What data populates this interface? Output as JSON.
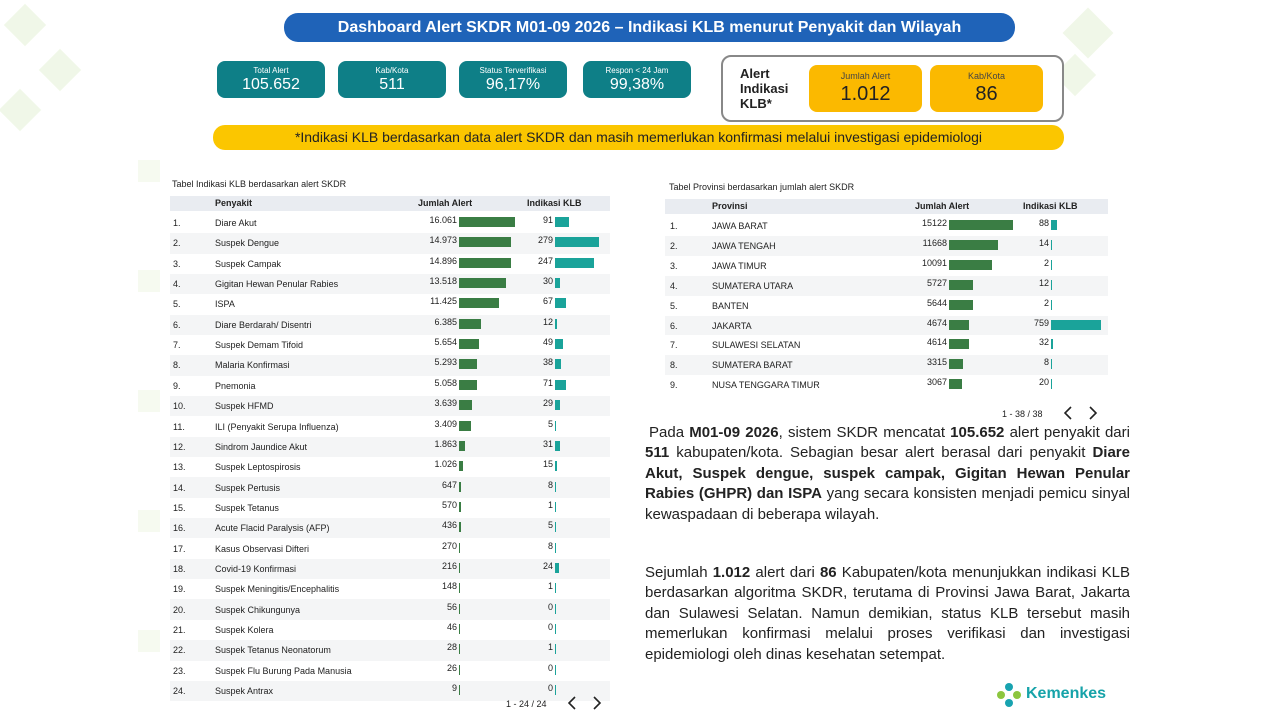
{
  "header": {
    "title": "Dashboard Alert SKDR M01-09 2026 – Indikasi KLB menurut Penyakit dan Wilayah"
  },
  "kpis": [
    {
      "label": "Total Alert",
      "value": "105.652"
    },
    {
      "label": "Kab/Kota",
      "value": "511"
    },
    {
      "label": "Status Terverifikasi",
      "value": "96,17%"
    },
    {
      "label": "Respon < 24 Jam",
      "value": "99,38%"
    }
  ],
  "klb_box": {
    "title": "Alert Indikasi KLB*",
    "items": [
      {
        "label": "Jumlah Alert",
        "value": "1.012"
      },
      {
        "label": "Kab/Kota",
        "value": "86"
      }
    ]
  },
  "note": "*Indikasi KLB berdasarkan data alert SKDR dan masih memerlukan konfirmasi melalui investigasi epidemiologi",
  "disease_table": {
    "caption": "Tabel Indikasi KLB berdasarkan alert SKDR",
    "columns": [
      "Penyakit",
      "Jumlah Alert",
      "Indikasi KLB"
    ],
    "rows": [
      [
        "1.",
        "Diare Akut",
        {
          "value": 16061,
          "label": "16.061"
        },
        91
      ],
      [
        "2.",
        "Suspek Dengue",
        {
          "value": 14973,
          "label": "14.973"
        },
        279
      ],
      [
        "3.",
        "Suspek Campak",
        {
          "value": 14896,
          "label": "14.896"
        },
        247
      ],
      [
        "4.",
        "Gigitan Hewan Penular Rabies",
        {
          "value": 13518,
          "label": "13.518"
        },
        30
      ],
      [
        "5.",
        "ISPA",
        {
          "value": 11425,
          "label": "11.425"
        },
        67
      ],
      [
        "6.",
        "Diare Berdarah/ Disentri",
        {
          "value": 6385,
          "label": "6.385"
        },
        12
      ],
      [
        "7.",
        "Suspek Demam Tifoid",
        {
          "value": 5654,
          "label": "5.654"
        },
        49
      ],
      [
        "8.",
        "Malaria Konfirmasi",
        {
          "value": 5293,
          "label": "5.293"
        },
        38
      ],
      [
        "9.",
        "Pnemonia",
        {
          "value": 5058,
          "label": "5.058"
        },
        71
      ],
      [
        "10.",
        "Suspek HFMD",
        {
          "value": 3639,
          "label": "3.639"
        },
        29
      ],
      [
        "11.",
        "ILI (Penyakit Serupa Influenza)",
        {
          "value": 3409,
          "label": "3.409"
        },
        5
      ],
      [
        "12.",
        "Sindrom Jaundice Akut",
        {
          "value": 1863,
          "label": "1.863"
        },
        31
      ],
      [
        "13.",
        "Suspek Leptospirosis",
        {
          "value": 1026,
          "label": "1.026"
        },
        15
      ],
      [
        "14.",
        "Suspek Pertusis",
        647,
        8
      ],
      [
        "15.",
        "Suspek Tetanus",
        570,
        1
      ],
      [
        "16.",
        "Acute Flacid Paralysis (AFP)",
        436,
        5
      ],
      [
        "17.",
        "Kasus Observasi Difteri",
        270,
        8
      ],
      [
        "18.",
        "Covid-19 Konfirmasi",
        216,
        24
      ],
      [
        "19.",
        "Suspek Meningitis/Encephalitis",
        148,
        1
      ],
      [
        "20.",
        "Suspek Chikungunya",
        56,
        0
      ],
      [
        "21.",
        "Suspek Kolera",
        46,
        0
      ],
      [
        "22.",
        "Suspek Tetanus Neonatorum",
        28,
        1
      ],
      [
        "23.",
        "Suspek Flu Burung Pada Manusia",
        26,
        0
      ],
      [
        "24.",
        "Suspek Antrax",
        9,
        0
      ]
    ],
    "pagination": "1 - 24 / 24"
  },
  "province_table": {
    "caption": "Tabel Provinsi berdasarkan jumlah alert SKDR",
    "columns": [
      "Provinsi",
      "Jumlah Alert",
      "Indikasi KLB"
    ],
    "rows": [
      [
        "1.",
        "JAWA BARAT",
        15122,
        88
      ],
      [
        "2.",
        "JAWA TENGAH",
        11668,
        14
      ],
      [
        "3.",
        "JAWA TIMUR",
        10091,
        2
      ],
      [
        "4.",
        "SUMATERA UTARA",
        5727,
        12
      ],
      [
        "5.",
        "BANTEN",
        5644,
        2
      ],
      [
        "6.",
        "JAKARTA",
        4674,
        759
      ],
      [
        "7.",
        "SULAWESI SELATAN",
        4614,
        32
      ],
      [
        "8.",
        "SUMATERA BARAT",
        3315,
        8
      ],
      [
        "9.",
        "NUSA TENGGARA TIMUR",
        3067,
        20
      ]
    ],
    "pagination": "1 - 38 / 38"
  },
  "paragraphs": [
    [
      "Pada ",
      "M01-09 2026",
      ", sistem SKDR mencatat ",
      "105.652",
      " alert penyakit dari ",
      "511",
      " kabupaten/kota. Sebagian besar alert berasal dari penyakit ",
      "Diare Akut, Suspek dengue, suspek campak, Gigitan Hewan Penular Rabies (GHPR) dan ISPA",
      " yang secara konsisten menjadi pemicu sinyal kewaspadaan di beberapa wilayah."
    ],
    [
      "Sejumlah ",
      "1.012",
      " alert dari ",
      "86",
      " Kabupaten/kota menunjukkan indikasi KLB berdasarkan algoritma SKDR, terutama di Provinsi Jawa Barat, Jakarta dan Sulawesi Selatan. Namun demikian, status KLB tersebut masih memerlukan konfirmasi melalui proses verifikasi dan investigasi epidemiologi oleh dinas kesehatan setempat."
    ]
  ],
  "logo": "Kemenkes"
}
